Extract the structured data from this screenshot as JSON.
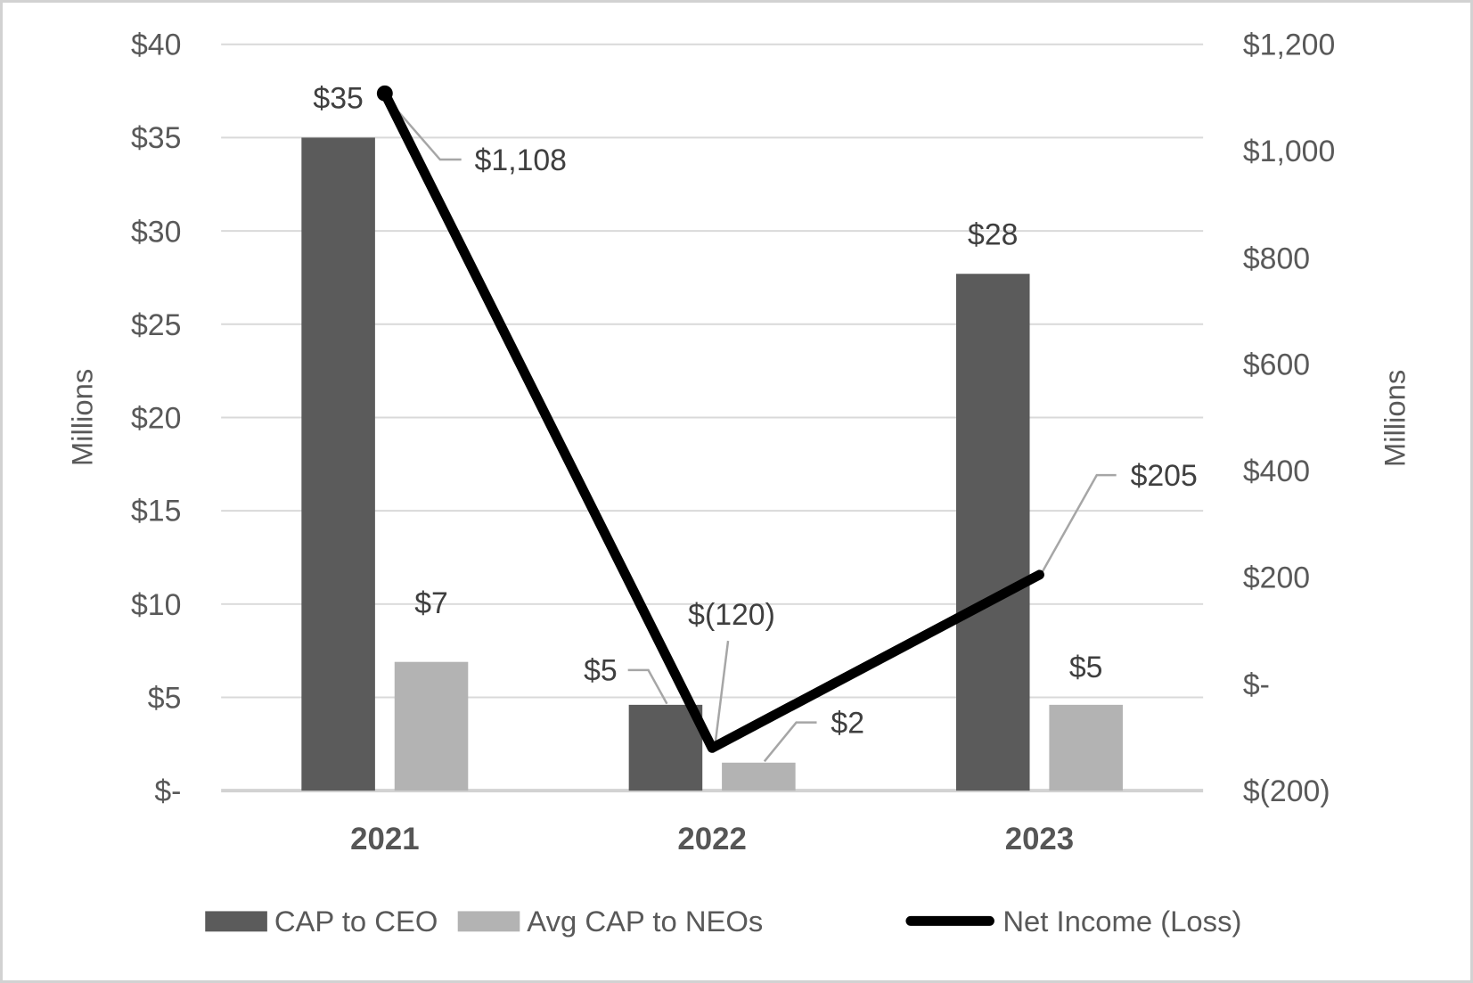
{
  "chart_data": {
    "type": "bar",
    "subtype": "bar+line dual-axis combo",
    "categories": [
      "2021",
      "2022",
      "2023"
    ],
    "series": [
      {
        "name": "CAP to CEO",
        "type": "bar",
        "axis": "left",
        "color": "#5b5b5b",
        "values": [
          35,
          4.6,
          27.7
        ],
        "data_labels": [
          "$35",
          "$5",
          "$28"
        ]
      },
      {
        "name": "Avg CAP to NEOs",
        "type": "bar",
        "axis": "left",
        "color": "#b3b3b3",
        "values": [
          6.9,
          1.5,
          4.6
        ],
        "data_labels": [
          "$7",
          "$2",
          "$5"
        ]
      },
      {
        "name": "Net Income (Loss)",
        "type": "line",
        "axis": "right",
        "color": "#000000",
        "values": [
          1108,
          -120,
          205
        ],
        "data_labels": [
          "$1,108",
          "$(120)",
          "$205"
        ]
      }
    ],
    "left_axis": {
      "title": "Millions",
      "min": 0,
      "max": 40,
      "step": 5,
      "tick_labels": [
        "$-",
        "$5",
        "$10",
        "$15",
        "$20",
        "$25",
        "$30",
        "$35",
        "$40"
      ]
    },
    "right_axis": {
      "title": "Millions",
      "min": -200,
      "max": 1200,
      "step": 200,
      "tick_labels": [
        "$(200)",
        "$-",
        "$200",
        "$400",
        "$600",
        "$800",
        "$1,000",
        "$1,200"
      ]
    },
    "grid": "horizontal gridlines on",
    "legend_position": "bottom",
    "colors": {
      "gridline": "#d9d9d9",
      "axis_line": "#d2d2d2",
      "tick_text": "#595959",
      "data_label_text": "#3f3f3f",
      "leader_line": "#a6a6a6",
      "background": "#ffffff",
      "frame_border": "#d2d2d2"
    }
  }
}
